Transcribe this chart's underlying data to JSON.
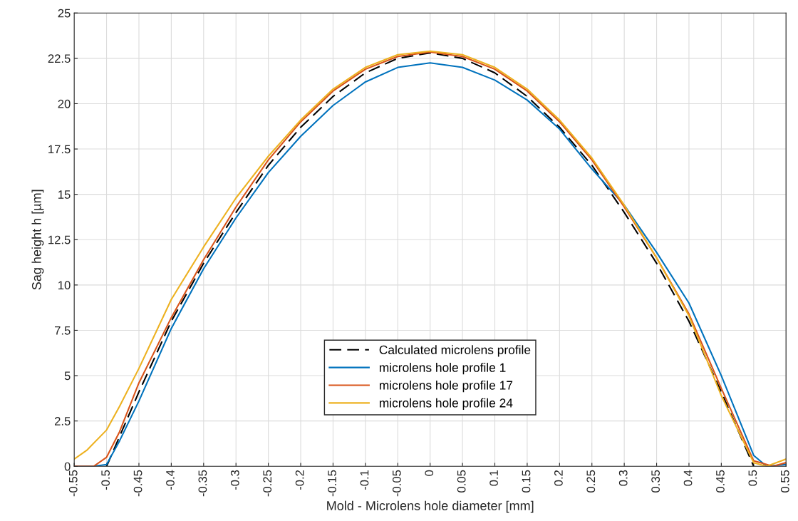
{
  "chart_data": {
    "type": "line",
    "xlabel": "Mold - Microlens hole diameter [mm]",
    "ylabel": "Sag height h [µm]",
    "xlim": [
      -0.55,
      0.55
    ],
    "xticks": [
      -0.55,
      -0.5,
      -0.45,
      -0.4,
      -0.35,
      -0.3,
      -0.25,
      -0.2,
      -0.15,
      -0.1,
      -0.05,
      0,
      0.05,
      0.1,
      0.15,
      0.2,
      0.25,
      0.3,
      0.35,
      0.4,
      0.45,
      0.5,
      0.55
    ],
    "ylim": [
      0,
      25
    ],
    "yticks": [
      0,
      2.5,
      5,
      7.5,
      10,
      12.5,
      15,
      17.5,
      20,
      22.5,
      25
    ],
    "grid": true,
    "legend": "bottom",
    "series": [
      {
        "name": "Calculated microlens profile",
        "color": "#000000",
        "line_style": "dashed",
        "x": [
          -0.5,
          -0.45,
          -0.4,
          -0.35,
          -0.3,
          -0.25,
          -0.2,
          -0.15,
          -0.1,
          -0.05,
          0,
          0.05,
          0.1,
          0.15,
          0.2,
          0.25,
          0.3,
          0.35,
          0.4,
          0.45,
          0.5
        ],
        "values": [
          0,
          4.1,
          8.0,
          11.2,
          14.0,
          16.6,
          18.7,
          20.4,
          21.7,
          22.5,
          22.8,
          22.5,
          21.7,
          20.4,
          18.7,
          16.6,
          14.0,
          11.2,
          8.0,
          4.1,
          0
        ]
      },
      {
        "name": "microlens hole profile 1",
        "color": "#0072bd",
        "line_style": "solid",
        "x": [
          -0.55,
          -0.52,
          -0.5,
          -0.48,
          -0.45,
          -0.4,
          -0.35,
          -0.3,
          -0.25,
          -0.2,
          -0.15,
          -0.1,
          -0.05,
          0,
          0.05,
          0.1,
          0.15,
          0.2,
          0.25,
          0.3,
          0.35,
          0.4,
          0.45,
          0.5,
          0.52,
          0.55
        ],
        "values": [
          0,
          0,
          0.1,
          1.4,
          3.6,
          7.6,
          10.9,
          13.7,
          16.2,
          18.2,
          19.9,
          21.2,
          22.0,
          22.25,
          22.0,
          21.3,
          20.2,
          18.6,
          16.4,
          14.4,
          11.8,
          9.0,
          5.0,
          0.6,
          0,
          0.1
        ]
      },
      {
        "name": "microlens hole profile 17",
        "color": "#d95319",
        "line_style": "solid",
        "x": [
          -0.55,
          -0.52,
          -0.5,
          -0.48,
          -0.45,
          -0.4,
          -0.35,
          -0.3,
          -0.25,
          -0.2,
          -0.15,
          -0.1,
          -0.05,
          0,
          0.05,
          0.1,
          0.15,
          0.2,
          0.25,
          0.3,
          0.35,
          0.4,
          0.45,
          0.5,
          0.53,
          0.55
        ],
        "values": [
          0,
          0,
          0.5,
          1.9,
          4.6,
          8.2,
          11.4,
          14.3,
          16.9,
          19.0,
          20.7,
          21.9,
          22.6,
          22.85,
          22.6,
          21.9,
          20.7,
          19.0,
          16.9,
          14.3,
          11.5,
          8.4,
          4.3,
          0.3,
          0,
          0.2
        ]
      },
      {
        "name": "microlens hole profile 24",
        "color": "#edb120",
        "line_style": "solid",
        "x": [
          -0.55,
          -0.53,
          -0.5,
          -0.48,
          -0.45,
          -0.4,
          -0.35,
          -0.3,
          -0.25,
          -0.2,
          -0.15,
          -0.1,
          -0.05,
          0,
          0.05,
          0.1,
          0.15,
          0.2,
          0.25,
          0.3,
          0.35,
          0.4,
          0.45,
          0.5,
          0.52,
          0.55
        ],
        "values": [
          0.4,
          0.9,
          2.0,
          3.3,
          5.4,
          9.2,
          12.1,
          14.8,
          17.1,
          19.1,
          20.8,
          22.0,
          22.7,
          22.9,
          22.7,
          22.0,
          20.8,
          19.1,
          17.0,
          14.4,
          11.5,
          8.3,
          3.9,
          0.2,
          0,
          0.4
        ]
      }
    ]
  }
}
